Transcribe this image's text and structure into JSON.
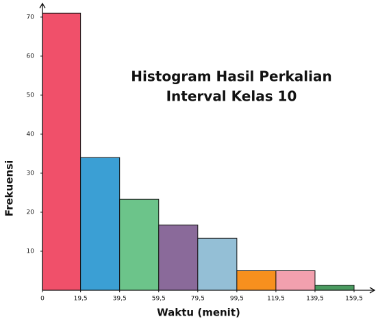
{
  "chart_data": {
    "type": "histogram",
    "title": [
      "Histogram Hasil Perkalian",
      "Interval Kelas 10"
    ],
    "x_label": "Waktu (menit)",
    "y_label": "Frekuensi",
    "bins": [
      0,
      19.5,
      39.5,
      59.5,
      79.5,
      99.5,
      119.5,
      139.5,
      159.5
    ],
    "values": [
      71,
      34,
      23.3,
      16.7,
      13.3,
      5,
      5,
      1.3
    ],
    "colors": [
      "#f0506a",
      "#3b9fd4",
      "#6cc48a",
      "#8a6a9a",
      "#94bfd6",
      "#f7901e",
      "#f2a0ae",
      "#4a9a60"
    ],
    "xlim": [
      0,
      170
    ],
    "ylim": [
      0,
      73.5
    ],
    "xticks": [
      0,
      {
        "value": 19.5,
        "label": "19,5"
      },
      {
        "value": 39.5,
        "label": "39,5"
      },
      {
        "value": 59.5,
        "label": "59,5"
      },
      {
        "value": 79.5,
        "label": "79,5"
      },
      {
        "value": 99.5,
        "label": "99,5"
      },
      {
        "value": 119.5,
        "label": "119,5"
      },
      {
        "value": 139.5,
        "label": "139,5"
      },
      {
        "value": 159.5,
        "label": "159,5"
      }
    ],
    "yticks": [
      10,
      20,
      30,
      40,
      50,
      60,
      70
    ]
  }
}
